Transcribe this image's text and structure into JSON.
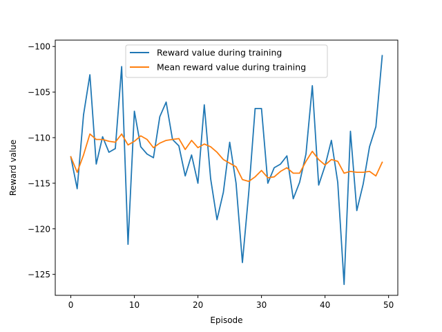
{
  "chart_data": {
    "type": "line",
    "xlabel": "Episode",
    "ylabel": "Reward value",
    "xlim": [
      -2.45,
      51.45
    ],
    "ylim": [
      -127.3,
      -99.3
    ],
    "xticks": [
      0,
      10,
      20,
      30,
      40,
      50
    ],
    "yticks": [
      -125,
      -120,
      -115,
      -110,
      -105,
      -100
    ],
    "grid": false,
    "legend_position": "top-center",
    "x": [
      0,
      1,
      2,
      3,
      4,
      5,
      6,
      7,
      8,
      9,
      10,
      11,
      12,
      13,
      14,
      15,
      16,
      17,
      18,
      19,
      20,
      21,
      22,
      23,
      24,
      25,
      26,
      27,
      28,
      29,
      30,
      31,
      32,
      33,
      34,
      35,
      36,
      37,
      38,
      39,
      40,
      41,
      42,
      43,
      44,
      45,
      46,
      47,
      48,
      49
    ],
    "series": [
      {
        "name": "Reward value during training",
        "color": "#1f77b4",
        "values": [
          -112.1,
          -115.6,
          -107.5,
          -103.1,
          -112.9,
          -109.9,
          -111.6,
          -111.2,
          -102.2,
          -121.7,
          -107.1,
          -111.0,
          -111.8,
          -112.2,
          -107.7,
          -106.1,
          -110.2,
          -110.9,
          -114.2,
          -111.9,
          -115.0,
          -106.4,
          -114.5,
          -119.0,
          -116.0,
          -110.5,
          -115.0,
          -123.7,
          -116.0,
          -106.8,
          -106.8,
          -115.0,
          -113.3,
          -112.9,
          -112.0,
          -116.7,
          -114.9,
          -111.8,
          -104.3,
          -115.2,
          -113.1,
          -110.3,
          -114.9,
          -126.1,
          -109.3,
          -118.0,
          -115.1,
          -111.0,
          -108.8,
          -101.0
        ]
      },
      {
        "name": "Mean reward value during training",
        "color": "#ff7f0e",
        "values": [
          -112.1,
          -113.8,
          -111.9,
          -109.6,
          -110.2,
          -110.2,
          -110.4,
          -110.5,
          -109.6,
          -110.8,
          -110.4,
          -109.8,
          -110.2,
          -111.1,
          -110.6,
          -110.3,
          -110.2,
          -110.1,
          -111.3,
          -110.3,
          -111.1,
          -110.7,
          -111.0,
          -111.6,
          -112.4,
          -112.8,
          -113.2,
          -114.6,
          -114.8,
          -114.3,
          -113.6,
          -114.4,
          -114.3,
          -113.7,
          -113.3,
          -113.9,
          -113.9,
          -112.6,
          -111.5,
          -112.4,
          -113.0,
          -112.4,
          -112.6,
          -113.9,
          -113.7,
          -113.8,
          -113.8,
          -113.7,
          -114.2,
          -112.7
        ]
      }
    ]
  }
}
